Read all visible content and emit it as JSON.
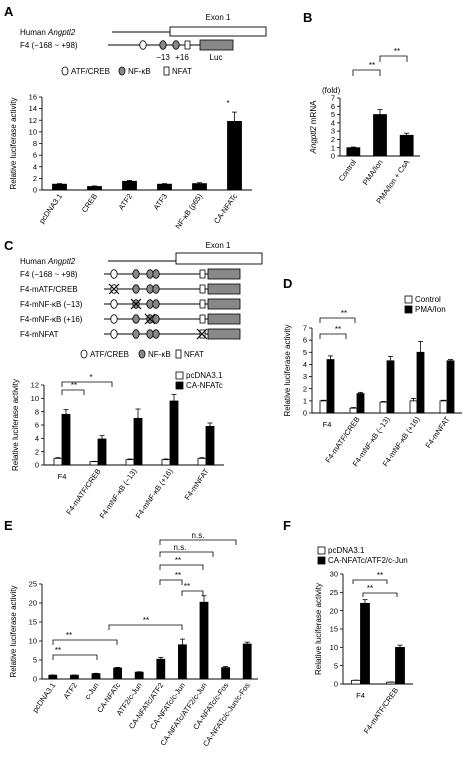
{
  "panels": {
    "A": {
      "label": "A",
      "gene_prefix": "Human ",
      "gene": "Angptl2",
      "exon": "Exon 1",
      "construct": "F4 (−168 ~ +98)",
      "sites": [
        "−13",
        "+16"
      ],
      "luc": "Luc",
      "legend": [
        "ATF/CREB",
        "NF-κB",
        "NFAT"
      ],
      "star": "*"
    },
    "B": {
      "label": "B",
      "unit": "(fold)",
      "ylabel_gene": "Angptl2",
      "ylabel_rest": " mRNA",
      "sig": [
        "**",
        "**"
      ]
    },
    "C": {
      "label": "C",
      "gene_prefix": "Human ",
      "gene": "Angptl2",
      "exon": "Exon 1",
      "constructs": [
        "F4 (−168 ~ +98)",
        "F4-mATF/CREB",
        "F4-mNF-κB (−13)",
        "F4-mNF-κB (+16)",
        "F4-mNFAT"
      ],
      "legend": [
        "ATF/CREB",
        "NF-κB",
        "NFAT"
      ],
      "sig": [
        "*",
        "**"
      ]
    },
    "D": {
      "label": "D",
      "sig": [
        "**",
        "**"
      ]
    },
    "E": {
      "label": "E",
      "sig": [
        "**",
        "**",
        "**",
        "**",
        "**",
        "**",
        "n.s.",
        "n.s."
      ]
    },
    "F": {
      "label": "F",
      "sig": [
        "**",
        "**"
      ]
    }
  },
  "chart_data": [
    {
      "panel": "A",
      "type": "bar",
      "categories": [
        "pcDNA3.1",
        "CREB",
        "ATF2",
        "ATF3",
        "NF-κB (p65)",
        "CA-NFATc"
      ],
      "values": [
        1.0,
        0.6,
        1.5,
        1.0,
        1.1,
        11.8
      ],
      "errors": [
        0.1,
        0.1,
        0.15,
        0.1,
        0.15,
        1.6
      ],
      "ylabel": "Relative luciferase activity",
      "ylim": [
        0,
        16
      ],
      "yticks": [
        0,
        2,
        4,
        6,
        8,
        10,
        12,
        14,
        16
      ],
      "bar_color": "#000000"
    },
    {
      "panel": "B",
      "type": "bar",
      "categories": [
        "Control",
        "PMA/Ion",
        "PMA/Ion + CsA"
      ],
      "values": [
        1.0,
        5.0,
        2.5
      ],
      "errors": [
        0.08,
        0.6,
        0.25
      ],
      "ylabel": "Angptl2 mRNA",
      "ylim": [
        0,
        7
      ],
      "yticks": [
        0,
        1,
        2,
        3,
        4,
        5,
        6,
        7
      ],
      "bar_color": "#000000"
    },
    {
      "panel": "C",
      "type": "bar",
      "categories": [
        "F4",
        "F4-mATF/CREB",
        "F4-mNF-κB (−13)",
        "F4-mNF-κB (+16)",
        "F4-mNFAT"
      ],
      "series": [
        {
          "name": "pcDNA3.1",
          "color": "#ffffff",
          "values": [
            1.0,
            0.5,
            0.8,
            0.8,
            1.0
          ],
          "errors": [
            0.1,
            0.05,
            0.1,
            0.1,
            0.1
          ]
        },
        {
          "name": "CA-NFATc",
          "color": "#000000",
          "values": [
            7.6,
            3.9,
            7.0,
            9.6,
            5.8
          ],
          "errors": [
            0.7,
            0.5,
            1.4,
            1.0,
            0.5
          ]
        }
      ],
      "ylabel": "Relative luciferase activity",
      "ylim": [
        0,
        12
      ],
      "yticks": [
        0,
        2,
        4,
        6,
        8,
        10,
        12
      ]
    },
    {
      "panel": "D",
      "type": "bar",
      "categories": [
        "F4",
        "F4-mATF/CREB",
        "F4-mNF-κB (−13)",
        "F4-mNF-κB (+16)",
        "F4-mNFAT"
      ],
      "series": [
        {
          "name": "Control",
          "color": "#ffffff",
          "values": [
            1.0,
            0.4,
            0.9,
            1.0,
            1.0
          ],
          "errors": [
            0.05,
            0.05,
            0.05,
            0.2,
            0.05
          ]
        },
        {
          "name": "PMA/Ion",
          "color": "#000000",
          "values": [
            4.4,
            1.6,
            4.3,
            5.0,
            4.3
          ],
          "errors": [
            0.3,
            0.1,
            0.35,
            0.9,
            0.1
          ]
        }
      ],
      "ylabel": "Relative luciferase activity",
      "ylim": [
        0,
        7
      ],
      "yticks": [
        0,
        1,
        2,
        3,
        4,
        5,
        6,
        7
      ]
    },
    {
      "panel": "E",
      "type": "bar",
      "categories": [
        "pcDNA3.1",
        "ATF2",
        "c-Jun",
        "CA-NFATc",
        "ATF2/c-Jun",
        "CA-NFATc/ATF2",
        "CA-NFATc/c-Jun",
        "CA-NFATc/ATF2/c-Jun",
        "CA-NFATc/c-Fos",
        "CA-NFATc/c-Jun/c-Fos"
      ],
      "values": [
        1.0,
        1.0,
        1.4,
        2.9,
        1.8,
        5.2,
        9.0,
        20.2,
        3.0,
        9.2
      ],
      "errors": [
        0.05,
        0.05,
        0.1,
        0.15,
        0.1,
        0.5,
        1.5,
        1.7,
        0.3,
        0.5
      ],
      "ylabel": "Relative luciferase activity",
      "ylim": [
        0,
        25
      ],
      "yticks": [
        0,
        5,
        10,
        15,
        20,
        25
      ],
      "bar_color": "#000000"
    },
    {
      "panel": "F",
      "type": "bar",
      "categories": [
        "F4",
        "F4-mATF/CREB"
      ],
      "series": [
        {
          "name": "pcDNA3.1",
          "color": "#ffffff",
          "values": [
            1.0,
            0.5
          ],
          "errors": [
            0.05,
            0.05
          ]
        },
        {
          "name": "CA-NFATc/ATF2/c-Jun",
          "color": "#000000",
          "values": [
            22.0,
            10.0
          ],
          "errors": [
            1.0,
            0.6
          ]
        }
      ],
      "ylabel": "Relative luciferase activity",
      "ylim": [
        0,
        30
      ],
      "yticks": [
        0,
        5,
        10,
        15,
        20,
        25,
        30
      ]
    }
  ]
}
